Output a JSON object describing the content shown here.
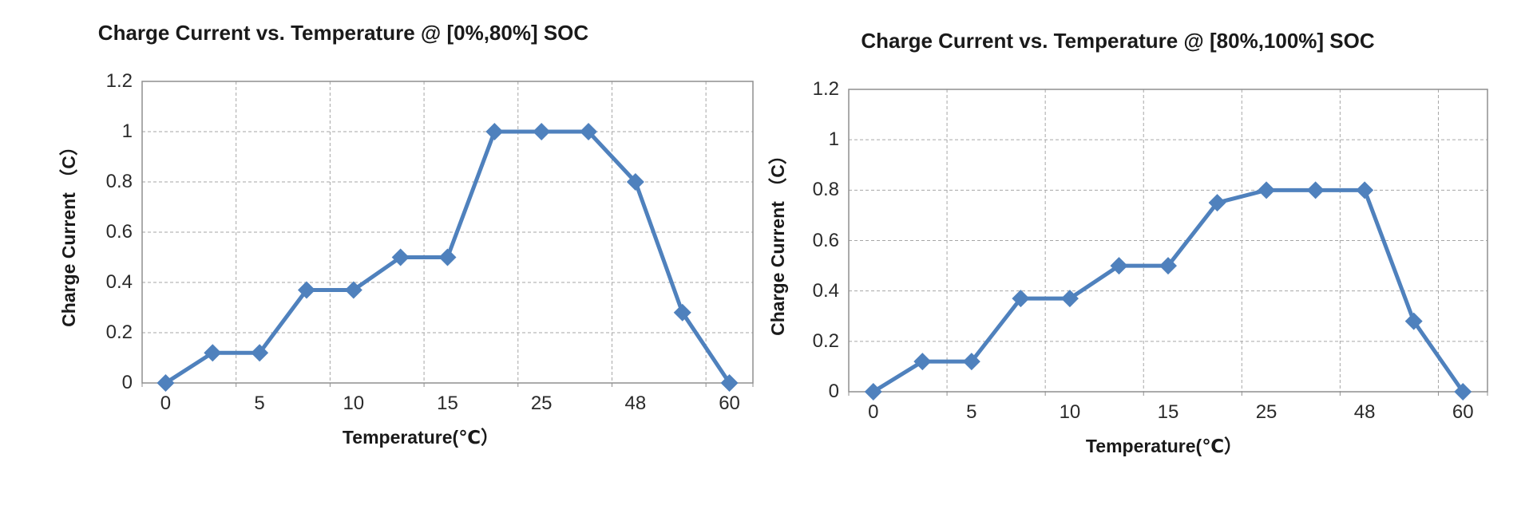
{
  "page": {
    "background": "#ffffff"
  },
  "chart_data": [
    {
      "type": "line",
      "title": "Charge Current vs. Temperature @ [0%,80%] SOC",
      "xlabel": "Temperature(℃）",
      "ylabel": "Charge Current （C）",
      "x_tick_labels": [
        "0",
        "5",
        "10",
        "15",
        "25",
        "48",
        "60"
      ],
      "x_tick_point_indices": [
        0,
        2,
        4,
        6,
        8,
        10,
        12
      ],
      "y_tick_labels": [
        "0",
        "0.2",
        "0.4",
        "0.6",
        "0.8",
        "1",
        "1.2"
      ],
      "y_tick_values": [
        0,
        0.2,
        0.4,
        0.6,
        0.8,
        1,
        1.2
      ],
      "ylim": [
        0,
        1.2
      ],
      "series": [
        {
          "name": "Charge Current (C)",
          "values": [
            0,
            0.12,
            0.12,
            0.37,
            0.37,
            0.5,
            0.5,
            1,
            1,
            1,
            0.8,
            0.28,
            0
          ]
        }
      ],
      "series_color": "#4F81BD",
      "grid_color": "#A6A6A6",
      "border_color": "#8F8F8F",
      "grid": "dashed",
      "legend": "none",
      "marker": "diamond"
    },
    {
      "type": "line",
      "title": "Charge Current vs. Temperature @ [80%,100%] SOC",
      "xlabel": "Temperature(℃）",
      "ylabel": "Charge Current （C）",
      "x_tick_labels": [
        "0",
        "5",
        "10",
        "15",
        "25",
        "48",
        "60"
      ],
      "x_tick_point_indices": [
        0,
        2,
        4,
        6,
        8,
        10,
        12
      ],
      "y_tick_labels": [
        "0",
        "0.2",
        "0.4",
        "0.6",
        "0.8",
        "1",
        "1.2"
      ],
      "y_tick_values": [
        0,
        0.2,
        0.4,
        0.6,
        0.8,
        1,
        1.2
      ],
      "ylim": [
        0,
        1.2
      ],
      "series": [
        {
          "name": "Charge Current (C)",
          "values": [
            0,
            0.12,
            0.12,
            0.37,
            0.37,
            0.5,
            0.5,
            0.75,
            0.8,
            0.8,
            0.8,
            0.28,
            0
          ]
        }
      ],
      "series_color": "#4F81BD",
      "grid_color": "#A6A6A6",
      "border_color": "#8F8F8F",
      "grid": "dashed",
      "legend": "none",
      "marker": "diamond"
    }
  ]
}
